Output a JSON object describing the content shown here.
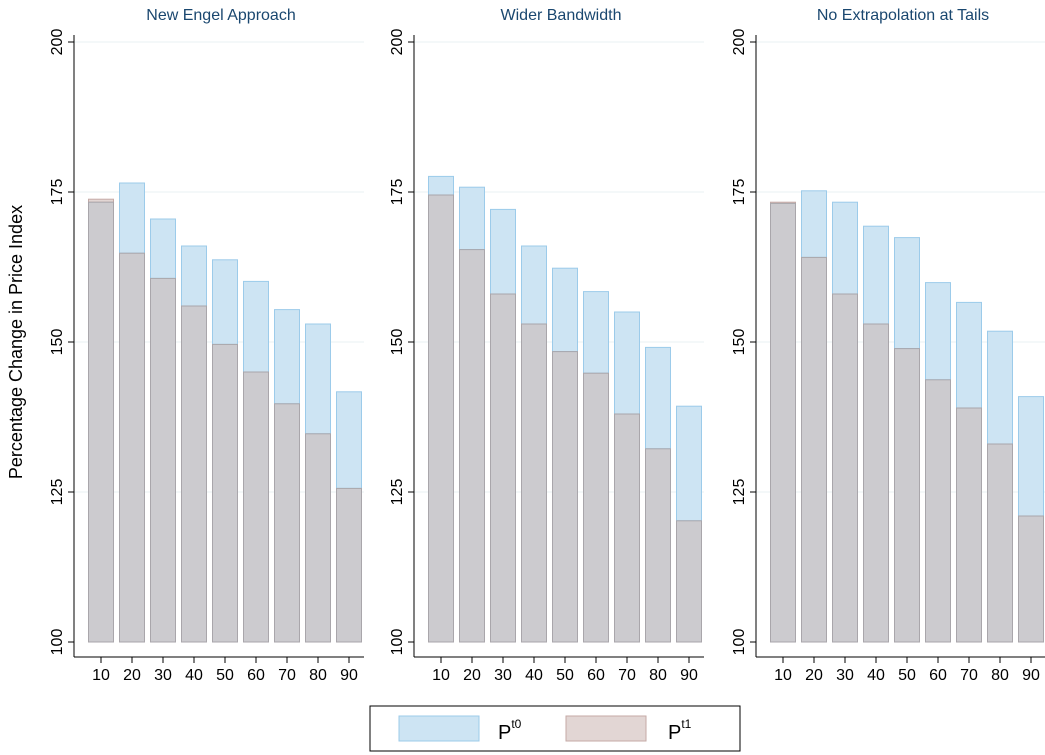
{
  "y_axis_title": "Percentage Change in Price Index",
  "legend": [
    {
      "label": "P",
      "superscript": "t0",
      "color": "#cde4f3",
      "stroke": "#9ccbea"
    },
    {
      "label": "P",
      "superscript": "t1",
      "color": "#e2d6d4",
      "stroke": "#c5aaa6"
    }
  ],
  "colors": {
    "overlap": "#cccbcf",
    "overlap_stroke": "#a9a6ab",
    "title": "#1a476f",
    "grid": "#eaf2f3"
  },
  "chart_data": [
    {
      "type": "bar",
      "title": "New Engel Approach",
      "categories": [
        "10",
        "20",
        "30",
        "40",
        "50",
        "60",
        "70",
        "80",
        "90"
      ],
      "ylim": [
        100,
        200
      ],
      "yticks": [
        100,
        125,
        150,
        175,
        200
      ],
      "series": [
        {
          "name": "Pt0",
          "values": [
            173.3,
            176.5,
            170.5,
            166.0,
            163.7,
            160.1,
            155.4,
            153.0,
            141.7
          ]
        },
        {
          "name": "Pt1",
          "values": [
            173.8,
            164.8,
            160.6,
            156.0,
            149.6,
            145.0,
            139.7,
            134.7,
            125.6
          ]
        }
      ]
    },
    {
      "type": "bar",
      "title": "Wider Bandwidth",
      "categories": [
        "10",
        "20",
        "30",
        "40",
        "50",
        "60",
        "70",
        "80",
        "90"
      ],
      "ylim": [
        100,
        200
      ],
      "yticks": [
        100,
        125,
        150,
        175,
        200
      ],
      "series": [
        {
          "name": "Pt0",
          "values": [
            177.6,
            175.8,
            172.1,
            166.0,
            162.3,
            158.4,
            155.0,
            149.1,
            139.3
          ]
        },
        {
          "name": "Pt1",
          "values": [
            174.5,
            165.4,
            158.0,
            153.0,
            148.4,
            144.8,
            138.0,
            132.2,
            120.2
          ]
        }
      ]
    },
    {
      "type": "bar",
      "title": "No Extrapolation at Tails",
      "categories": [
        "10",
        "20",
        "30",
        "40",
        "50",
        "60",
        "70",
        "80",
        "90"
      ],
      "ylim": [
        100,
        200
      ],
      "yticks": [
        100,
        125,
        150,
        175,
        200
      ],
      "series": [
        {
          "name": "Pt0",
          "values": [
            173.1,
            175.2,
            173.3,
            169.3,
            167.4,
            159.9,
            156.6,
            151.8,
            140.9
          ]
        },
        {
          "name": "Pt1",
          "values": [
            173.3,
            164.1,
            158.0,
            153.0,
            148.9,
            143.7,
            139.0,
            133.0,
            121.0
          ]
        }
      ]
    }
  ]
}
